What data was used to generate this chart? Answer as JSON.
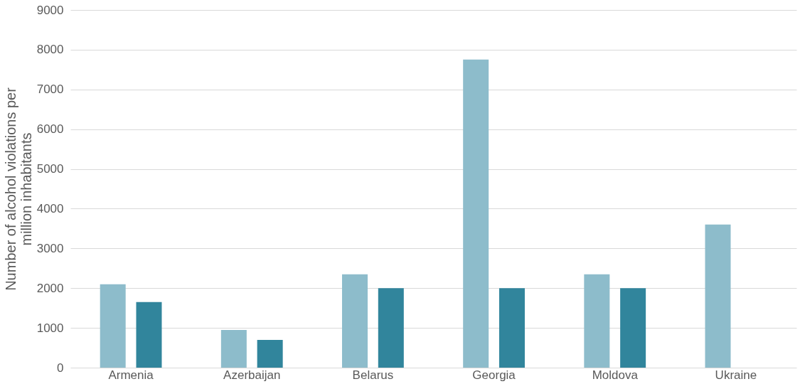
{
  "chart_data": {
    "type": "bar",
    "ylabel": "Number of alcohol violations per\nmillion inhabitants",
    "categories": [
      "Armenia",
      "Azerbaijan",
      "Belarus",
      "Georgia",
      "Moldova",
      "Ukraine"
    ],
    "series": [
      {
        "color": "#8dbccb",
        "values": [
          2100,
          950,
          2350,
          7750,
          2350,
          3600
        ]
      },
      {
        "color": "#31859c",
        "values": [
          1650,
          700,
          2000,
          2000,
          2000,
          null
        ]
      }
    ],
    "ylim": [
      0,
      9000
    ],
    "yticks": [
      0,
      1000,
      2000,
      3000,
      4000,
      5000,
      6000,
      7000,
      8000,
      9000
    ],
    "grid": "y"
  }
}
